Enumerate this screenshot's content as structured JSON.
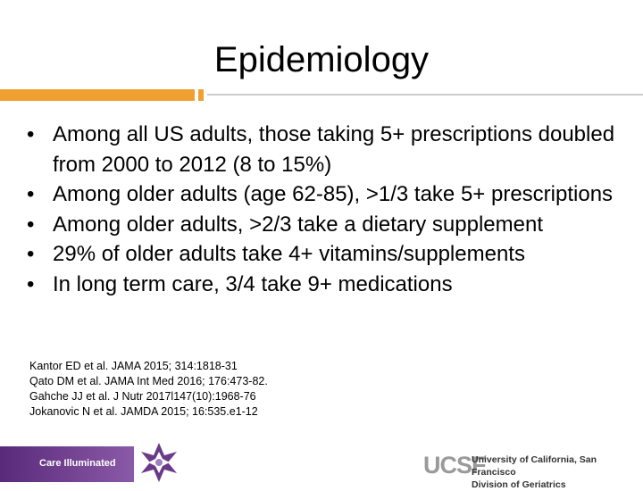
{
  "header": {
    "title": "Epidemiology"
  },
  "bullets": [
    "Among all US adults, those taking 5+ prescriptions doubled from 2000 to 2012 (8 to 15%)",
    "Among older adults (age 62-85), >1/3 take 5+ prescriptions",
    "Among older adults, >2/3 take a dietary supplement",
    "29% of older adults take 4+ vitamins/supplements",
    "In long term care, 3/4 take 9+ medications"
  ],
  "references": [
    "Kantor ED et al. JAMA 2015; 314:1818-31",
    "Qato DM et al. JAMA Int Med 2016; 176:473-82.",
    "Gahche JJ et al. J Nutr 2017l147(10):1968-76",
    "Jokanovic N et al. JAMDA 2015; 16:535.e1-12"
  ],
  "footer": {
    "badge": "Care Illuminated",
    "logo": "UCSF",
    "institution": "University of California, San Francisco",
    "division": "Division of Geriatrics"
  }
}
